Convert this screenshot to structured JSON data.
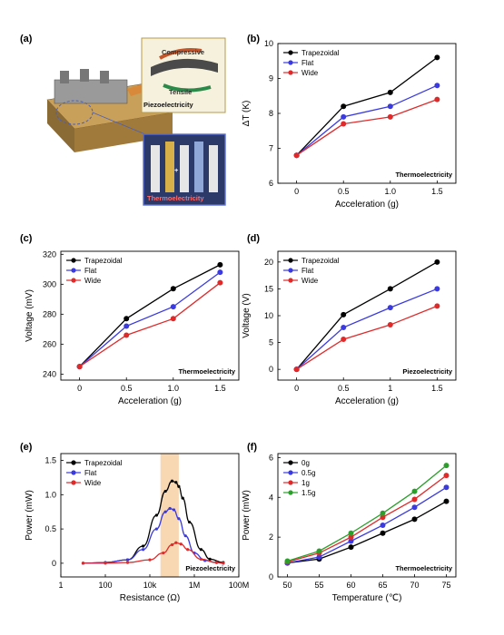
{
  "chart_data": [
    {
      "panel": "(a)",
      "type": "illustration",
      "labels": [
        "Compressive",
        "Tensile",
        "Piezoelectricity",
        "Thermoelectricity"
      ]
    },
    {
      "panel": "(b)",
      "type": "line",
      "x": [
        0,
        0.5,
        1.0,
        1.5
      ],
      "xticks": [
        "0",
        "0.5",
        "1.0",
        "1.5"
      ],
      "xlim": [
        -0.2,
        1.7
      ],
      "yticks": [
        "6",
        "7",
        "8",
        "9",
        "10"
      ],
      "ylim": [
        6,
        10
      ],
      "xlabel": "Acceleration (g)",
      "ylabel": "ΔT (K)",
      "annotation": "Thermoelectricity",
      "legend_position": "top-left",
      "series": [
        {
          "name": "Trapezoidal",
          "color": "#000000",
          "values": [
            6.8,
            8.2,
            8.6,
            9.6
          ]
        },
        {
          "name": "Flat",
          "color": "#3a3ae0",
          "values": [
            6.8,
            7.9,
            8.2,
            8.8
          ]
        },
        {
          "name": "Wide",
          "color": "#e02a2a",
          "values": [
            6.8,
            7.7,
            7.9,
            8.4
          ]
        }
      ]
    },
    {
      "panel": "(c)",
      "type": "line",
      "x": [
        0,
        0.5,
        1.0,
        1.5
      ],
      "xticks": [
        "0",
        "0.5",
        "1.0",
        "1.5"
      ],
      "xlim": [
        -0.2,
        1.7
      ],
      "yticks": [
        "240",
        "260",
        "280",
        "300",
        "320"
      ],
      "ylim": [
        236,
        322
      ],
      "xlabel": "Acceleration (g)",
      "ylabel": "Voltage (mV)",
      "annotation": "Thermoelectricity",
      "legend_position": "top-left",
      "series": [
        {
          "name": "Trapezoidal",
          "color": "#000000",
          "values": [
            245,
            277,
            297,
            313
          ]
        },
        {
          "name": "Flat",
          "color": "#3a3ae0",
          "values": [
            245,
            272,
            285,
            308
          ]
        },
        {
          "name": "Wide",
          "color": "#e02a2a",
          "values": [
            245,
            266,
            277,
            301
          ]
        }
      ]
    },
    {
      "panel": "(d)",
      "type": "line",
      "x": [
        0,
        0.5,
        1.0,
        1.5
      ],
      "xticks": [
        "0",
        "0.5",
        "1",
        "1.5"
      ],
      "xlim": [
        -0.2,
        1.7
      ],
      "yticks": [
        "0",
        "5",
        "10",
        "15",
        "20"
      ],
      "ylim": [
        -2,
        22
      ],
      "xlabel": "Acceleration (g)",
      "ylabel": "Voltage (V)",
      "annotation": "Piezoelectricity",
      "legend_position": "top-left",
      "series": [
        {
          "name": "Trapezoidal",
          "color": "#000000",
          "values": [
            0,
            10.2,
            15,
            20
          ]
        },
        {
          "name": "Flat",
          "color": "#3a3ae0",
          "values": [
            0,
            7.8,
            11.5,
            15
          ]
        },
        {
          "name": "Wide",
          "color": "#e02a2a",
          "values": [
            0,
            5.6,
            8.3,
            11.8
          ]
        }
      ]
    },
    {
      "panel": "(e)",
      "type": "line",
      "x_scale": "log",
      "xticks": [
        "1",
        "100",
        "10k",
        "1M",
        "100M"
      ],
      "xlim": [
        1,
        100000000
      ],
      "yticks": [
        "0",
        "0.5",
        "1.0",
        "1.5"
      ],
      "ylim": [
        -0.2,
        1.6
      ],
      "xlabel": "Resistance (Ω)",
      "ylabel": "Power (mW)",
      "annotation": "Piezoelectricity",
      "highlight_range": [
        30000,
        200000
      ],
      "legend_position": "top-left",
      "series": [
        {
          "name": "Trapezoidal",
          "color": "#000000",
          "x": [
            10,
            100,
            1000,
            5000,
            20000,
            50000,
            100000,
            150000,
            200000,
            300000,
            600000,
            2000000,
            5000000,
            20000000
          ],
          "values": [
            0,
            0.01,
            0.05,
            0.25,
            0.7,
            1.05,
            1.2,
            1.18,
            1.12,
            0.95,
            0.6,
            0.2,
            0.06,
            0.01
          ]
        },
        {
          "name": "Flat",
          "color": "#3a3ae0",
          "x": [
            10,
            100,
            1000,
            5000,
            20000,
            50000,
            80000,
            120000,
            200000,
            400000,
            1000000,
            3000000,
            10000000,
            20000000
          ],
          "values": [
            0,
            0.01,
            0.05,
            0.2,
            0.5,
            0.75,
            0.8,
            0.78,
            0.65,
            0.4,
            0.15,
            0.04,
            0.01,
            0
          ]
        },
        {
          "name": "Wide",
          "color": "#e02a2a",
          "x": [
            10,
            100,
            1000,
            10000,
            40000,
            100000,
            150000,
            250000,
            500000,
            2000000,
            10000000,
            20000000
          ],
          "values": [
            0,
            0,
            0.01,
            0.05,
            0.15,
            0.27,
            0.3,
            0.28,
            0.2,
            0.06,
            0.01,
            0
          ]
        }
      ]
    },
    {
      "panel": "(f)",
      "type": "line",
      "x": [
        50,
        55,
        60,
        65,
        70,
        75
      ],
      "xticks": [
        "50",
        "55",
        "60",
        "65",
        "70",
        "75"
      ],
      "xlim": [
        48.5,
        76.5
      ],
      "yticks": [
        "0",
        "2",
        "4",
        "6"
      ],
      "ylim": [
        0,
        6.2
      ],
      "xlabel": "Temperature (℃)",
      "ylabel": "Power (mW)",
      "annotation": "Thermoelectricity",
      "legend_position": "top-left",
      "series": [
        {
          "name": "0g",
          "color": "#000000",
          "values": [
            0.7,
            0.9,
            1.5,
            2.2,
            2.9,
            3.8
          ]
        },
        {
          "name": "0.5g",
          "color": "#3a3ae0",
          "values": [
            0.7,
            1.0,
            1.8,
            2.6,
            3.5,
            4.5
          ]
        },
        {
          "name": "1g",
          "color": "#e02a2a",
          "values": [
            0.75,
            1.2,
            2.0,
            3.0,
            3.9,
            5.1
          ]
        },
        {
          "name": "1.5g",
          "color": "#2aa02a",
          "values": [
            0.8,
            1.3,
            2.2,
            3.2,
            4.3,
            5.6
          ]
        }
      ]
    }
  ]
}
